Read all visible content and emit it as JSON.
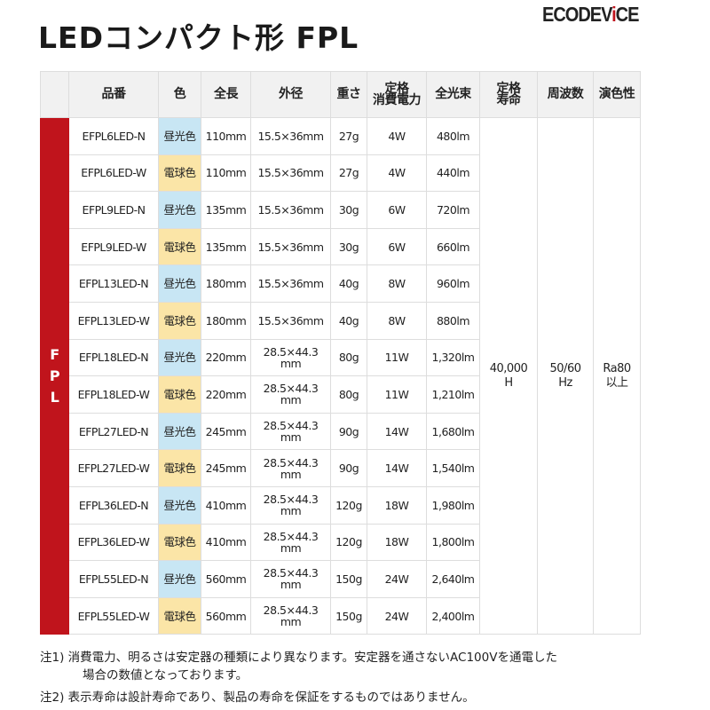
{
  "title": "LEDコンパクト形 FPL",
  "logo": "ECODEVICE",
  "table": {
    "group_label": "FPL",
    "headers": [
      "品番",
      "色",
      "全長",
      "外径",
      "重さ",
      "定格\n消費電力",
      "全光束",
      "定格\n寿命",
      "周波数",
      "演色性"
    ],
    "colors": {
      "昼光色": "#c8e6f4",
      "電球色": "#fbe5a7",
      "group": "#c0141c"
    },
    "rows": [
      [
        "EFPL6LED-N",
        "昼光色",
        "110mm",
        "15.5×36mm",
        "27g",
        "4W",
        "480lm"
      ],
      [
        "EFPL6LED-W",
        "電球色",
        "110mm",
        "15.5×36mm",
        "27g",
        "4W",
        "440lm"
      ],
      [
        "EFPL9LED-N",
        "昼光色",
        "135mm",
        "15.5×36mm",
        "30g",
        "6W",
        "720lm"
      ],
      [
        "EFPL9LED-W",
        "電球色",
        "135mm",
        "15.5×36mm",
        "30g",
        "6W",
        "660lm"
      ],
      [
        "EFPL13LED-N",
        "昼光色",
        "180mm",
        "15.5×36mm",
        "40g",
        "8W",
        "960lm"
      ],
      [
        "EFPL13LED-W",
        "電球色",
        "180mm",
        "15.5×36mm",
        "40g",
        "8W",
        "880lm"
      ],
      [
        "EFPL18LED-N",
        "昼光色",
        "220mm",
        "28.5×44.3 mm",
        "80g",
        "11W",
        "1,320lm"
      ],
      [
        "EFPL18LED-W",
        "電球色",
        "220mm",
        "28.5×44.3 mm",
        "80g",
        "11W",
        "1,210lm"
      ],
      [
        "EFPL27LED-N",
        "昼光色",
        "245mm",
        "28.5×44.3 mm",
        "90g",
        "14W",
        "1,680lm"
      ],
      [
        "EFPL27LED-W",
        "電球色",
        "245mm",
        "28.5×44.3 mm",
        "90g",
        "14W",
        "1,540lm"
      ],
      [
        "EFPL36LED-N",
        "昼光色",
        "410mm",
        "28.5×44.3 mm",
        "120g",
        "18W",
        "1,980lm"
      ],
      [
        "EFPL36LED-W",
        "電球色",
        "410mm",
        "28.5×44.3 mm",
        "120g",
        "18W",
        "1,800lm"
      ],
      [
        "EFPL55LED-N",
        "昼光色",
        "560mm",
        "28.5×44.3 mm",
        "150g",
        "24W",
        "2,640lm"
      ],
      [
        "EFPL55LED-W",
        "電球色",
        "560mm",
        "28.5×44.3 mm",
        "150g",
        "24W",
        "2,400lm"
      ]
    ],
    "life": "40,000\nH",
    "frequency": "50/60\nHz",
    "cri": "Ra80\n以上"
  },
  "notes": {
    "note1_line1": "注1) 消費電力、明るさは安定器の種類により異なります。安定器を通さないAC100Vを通電した",
    "note1_line2": "場合の数値となっております。",
    "note2": "注2) 表示寿命は設計寿命であり、製品の寿命を保証をするものではありません。"
  }
}
